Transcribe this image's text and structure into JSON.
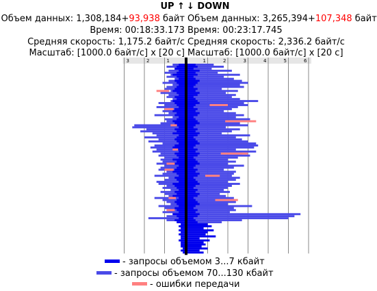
{
  "header": {
    "up_label": "UP ↑",
    "down_label": "↓ DOWN"
  },
  "up": {
    "volume_prefix": "Объем данных: ",
    "volume_main": "1,308,184",
    "volume_plus": "+",
    "volume_error": "93,938",
    "volume_unit": " байт",
    "time": "Время: 00:18:33.173",
    "speed": "Средняя скорость: 1,175.2 байт/с",
    "scale": "Масштаб: [1000.0 байт/с] x [20 с]"
  },
  "down": {
    "volume_prefix": "Объем данных: ",
    "volume_main": "3,265,394",
    "volume_plus": "+",
    "volume_error": "107,348",
    "volume_unit": " байт",
    "time": "Время: 00:23:17.745",
    "speed": "Средняя скорость: 2,336.2 байт/с",
    "scale": "Масштаб: [1000.0 байт/с] x [20 с]"
  },
  "colors": {
    "small": "#0000ee",
    "large": "#4a4ae8",
    "error": "#ff8080"
  },
  "legend": [
    {
      "color": "#0000ee",
      "label": "- запросы объемом 3...7 кбайт"
    },
    {
      "color": "#4a4ae8",
      "label": "- запросы объемом 70...130 кбайт"
    },
    {
      "color": "#ff8080",
      "label": "- ошибки передачи"
    }
  ],
  "chart_data": {
    "type": "bar",
    "up_ticks": [
      "3",
      "2",
      "1"
    ],
    "down_ticks": [
      "1",
      "2",
      "3",
      "4",
      "5",
      "6"
    ],
    "xlim_up": [
      0,
      3
    ],
    "xlim_down": [
      0,
      6
    ],
    "x_unit": "×1000 байт/с",
    "row_interval_seconds": 20,
    "series": [
      {
        "name": "запросы объемом 3...7 кбайт",
        "up": [
          0.3,
          0.4,
          0.5,
          0.3,
          0.4,
          0.6,
          0.4,
          0.3,
          0.5,
          0.4,
          0.3,
          0.4,
          0.5,
          0.6,
          0.4,
          0.3,
          0.5,
          0.4,
          0.6,
          0.5,
          0.4,
          0.3,
          0.5,
          0.6,
          0.4,
          0.5,
          0.3,
          0.4,
          0.6,
          0.5,
          0.4,
          0.3,
          0.5,
          0.4,
          0.6,
          0.3,
          0.4,
          0.5,
          0.4,
          0.3,
          0.5,
          0.6,
          0.4,
          0.3,
          0.5,
          0.4,
          0.3,
          0.6,
          0.4,
          0.5,
          0.3,
          0.4,
          0.5,
          0.6,
          0.4,
          0.3,
          0.5,
          0.4,
          0.3,
          0.6,
          0.5,
          0.4,
          0.3,
          0.5,
          0.4,
          0.6,
          0.3,
          0.4,
          0.5,
          0.4,
          0.3,
          0.5,
          0.4,
          0.3,
          0.6,
          0.4,
          0.3,
          0.5,
          0.4,
          0.2,
          0.3,
          0.2,
          0.3,
          0.2,
          0.3,
          0.2,
          0.2,
          0.3,
          0.2,
          0.2,
          0.2,
          0.1,
          0.2,
          0.1
        ],
        "down": [
          0.4,
          0.5,
          0.3,
          0.6,
          0.4,
          0.5,
          0.3,
          0.4,
          0.6,
          0.5,
          0.4,
          0.3,
          0.5,
          0.4,
          0.6,
          0.5,
          0.3,
          0.4,
          0.5,
          0.6,
          0.4,
          0.3,
          0.5,
          0.4,
          0.6,
          0.5,
          0.3,
          0.4,
          0.5,
          0.6,
          0.4,
          0.3,
          0.5,
          0.4,
          0.6,
          0.5,
          0.3,
          0.4,
          0.5,
          0.6,
          0.4,
          0.3,
          0.5,
          0.4,
          0.6,
          0.5,
          0.3,
          0.4,
          0.5,
          0.6,
          0.4,
          0.3,
          0.5,
          0.4,
          0.6,
          0.5,
          0.3,
          0.4,
          0.5,
          0.6,
          0.4,
          0.3,
          0.5,
          0.4,
          0.6,
          0.5,
          0.3,
          0.4,
          0.5,
          0.6,
          0.4,
          0.3,
          0.5,
          0.4,
          0.6,
          0.5,
          0.3,
          0.4,
          0.5,
          1.0,
          1.2,
          0.8,
          1.3,
          1.0,
          0.9,
          1.4,
          0.6,
          1.1,
          0.8,
          0.9,
          0.7,
          1.0,
          0.6,
          0.8
        ]
      },
      {
        "name": "запросы объемом 70...130 кбайт",
        "up": [
          0.6,
          0.9,
          0.5,
          0.8,
          1.0,
          0.7,
          0.9,
          0.5,
          0.8,
          1.1,
          0.6,
          0.9,
          1.0,
          0.7,
          1.2,
          0.8,
          0.9,
          0.6,
          0.7,
          1.3,
          1.0,
          1.4,
          0.9,
          1.1,
          0.8,
          1.5,
          0.6,
          1.0,
          0.9,
          1.2,
          2.5,
          2.6,
          1.9,
          2.2,
          1.6,
          1.4,
          2.0,
          1.3,
          1.8,
          1.1,
          1.5,
          1.7,
          1.4,
          1.6,
          1.2,
          1.3,
          1.0,
          1.2,
          1.1,
          1.4,
          1.0,
          1.2,
          1.3,
          0.9,
          1.1,
          1.5,
          0.8,
          1.0,
          1.4,
          1.3,
          0.9,
          1.1,
          0.7,
          1.2,
          1.0,
          0.8,
          1.5,
          1.1,
          0.9,
          0.7,
          1.3,
          1.0,
          0.8,
          1.1,
          0.6,
          0.9,
          1.8,
          0.9,
          0.0,
          0.0,
          0.0,
          0.0,
          0.0,
          0.0,
          0.0,
          0.0,
          0.0,
          0.0,
          0.0,
          0.0,
          0.0,
          0.0,
          0.0
        ],
        "down": [
          1.3,
          1.8,
          1.2,
          2.2,
          1.5,
          2.6,
          1.8,
          2.3,
          2.7,
          3.0,
          2.6,
          2.8,
          1.7,
          2.5,
          1.9,
          2.4,
          2.2,
          2.6,
          3.5,
          2.8,
          3.0,
          2.5,
          2.2,
          1.8,
          2.4,
          2.8,
          2.4,
          3.1,
          2.1,
          2.6,
          3.0,
          1.9,
          2.6,
          2.2,
          1.7,
          3.1,
          2.4,
          2.7,
          3.0,
          3.4,
          3.5,
          3.3,
          2.4,
          3.4,
          2.7,
          3.1,
          2.5,
          2.0,
          2.4,
          2.0,
          2.8,
          2.3,
          1.8,
          2.4,
          2.3,
          2.2,
          2.6,
          2.4,
          2.0,
          2.6,
          2.2,
          2.0,
          1.8,
          2.1,
          1.6,
          1.9,
          2.3,
          2.2,
          2.4,
          2.0,
          3.2,
          2.3,
          2.4,
          2.1,
          5.6,
          5.3,
          5.0,
          2.7,
          1.7,
          0.0,
          0.0,
          0.0,
          0.0,
          0.0,
          0.0,
          0.0,
          0.0,
          0.0,
          0.0,
          0.0,
          0.0,
          0.0,
          0.0
        ]
      },
      {
        "name": "ошибки передачи",
        "up_rows": [
          13,
          22,
          30,
          42,
          49,
          52,
          66,
          72
        ],
        "up_val": [
          1.4,
          1.0,
          0.7,
          0.6,
          0.9,
          1.0,
          0.8,
          0.9
        ],
        "down_rows": [
          20,
          28,
          44,
          55,
          67
        ],
        "down_val": [
          2.0,
          3.4,
          3.0,
          1.6,
          2.5
        ]
      }
    ]
  }
}
